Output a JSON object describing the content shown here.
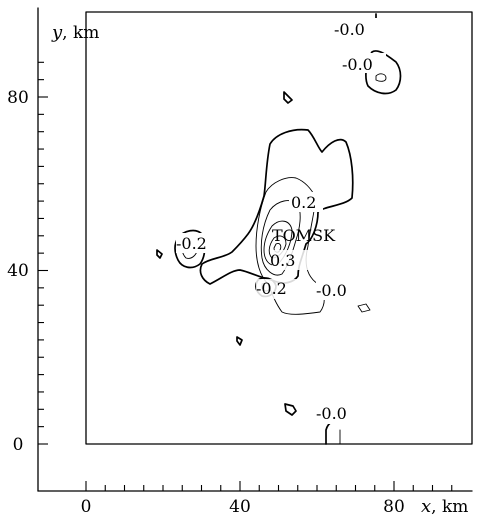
{
  "figure": {
    "x_axis": {
      "name": "x",
      "unit": ", km",
      "ticks": [
        "0",
        "40",
        "80"
      ]
    },
    "y_axis": {
      "name": "y",
      "unit": ", km",
      "ticks": [
        "0",
        "40",
        "80"
      ]
    },
    "city_label": "TOMSK",
    "contour_labels": [
      "-0.0",
      "-0.0",
      "0.2",
      "-0.2",
      "0.3",
      "-0.2",
      "-0.0",
      "-0.0"
    ]
  }
}
